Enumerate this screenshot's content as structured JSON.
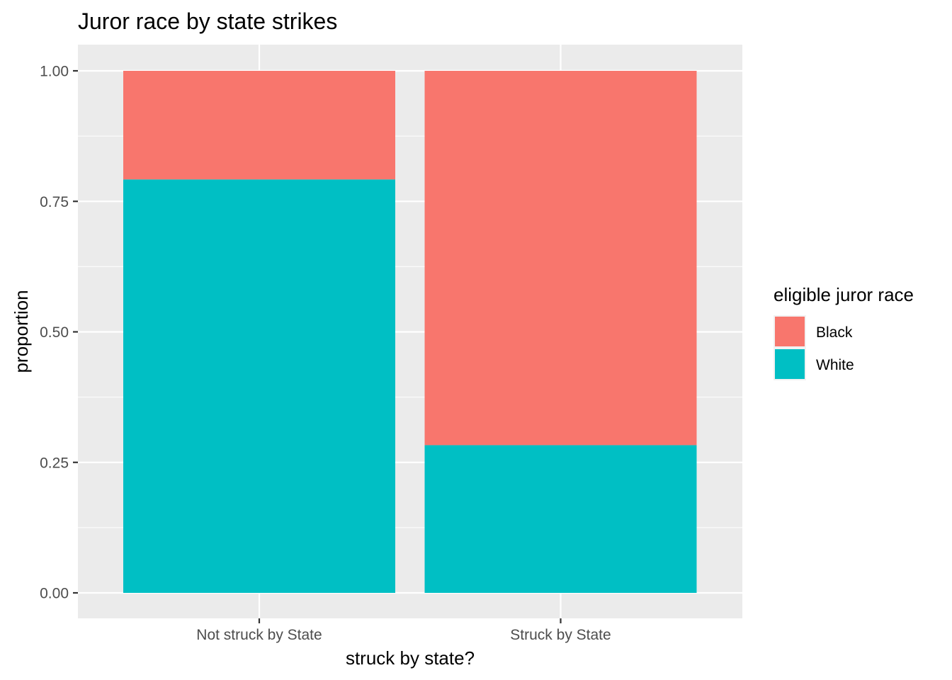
{
  "chart_data": {
    "type": "bar",
    "stacked": true,
    "title": "Juror race by state strikes",
    "xlabel": "struck by state?",
    "ylabel": "proportion",
    "ylim": [
      0,
      1
    ],
    "yticks": [
      "0.00",
      "0.25",
      "0.50",
      "0.75",
      "1.00"
    ],
    "ytick_values": [
      0,
      0.25,
      0.5,
      0.75,
      1
    ],
    "categories": [
      "Not struck by State",
      "Struck by State"
    ],
    "series": [
      {
        "name": "White",
        "color": "#00BFC4",
        "values": [
          0.792,
          0.283
        ]
      },
      {
        "name": "Black",
        "color": "#F8766D",
        "values": [
          0.208,
          0.717
        ]
      }
    ],
    "legend": {
      "title": "eligible juror race",
      "placement": "right",
      "entries": [
        {
          "label": "Black",
          "color": "#F8766D"
        },
        {
          "label": "White",
          "color": "#00BFC4"
        }
      ]
    },
    "grid": true,
    "panel_background": "#EBEBEB",
    "grid_color": "#FFFFFF"
  }
}
